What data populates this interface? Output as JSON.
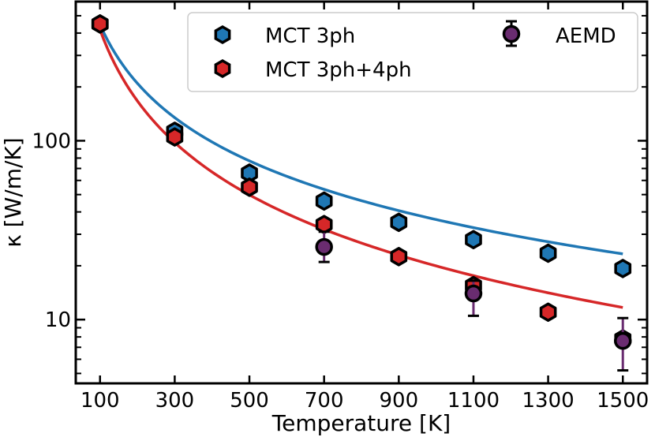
{
  "chart_data": {
    "type": "scatter",
    "title": "",
    "xlabel": "Temperature [K]",
    "ylabel": "κ [W/m/K]",
    "xscale": "linear",
    "yscale": "log",
    "xlim": [
      35,
      1565
    ],
    "ylim": [
      4.4,
      600
    ],
    "xticks": [
      100,
      300,
      500,
      700,
      900,
      1100,
      1300,
      1500
    ],
    "xtick_labels": [
      "100",
      "300",
      "500",
      "700",
      "900",
      "1100",
      "1300",
      "1500"
    ],
    "yticks": [
      10,
      100
    ],
    "ytick_labels": [
      "10",
      "100"
    ],
    "legend_position": "top-right",
    "series": [
      {
        "name": "MCT 3ph",
        "kind": "points",
        "marker": "hexagon",
        "color": "#1f77b4",
        "x": [
          100,
          300,
          500,
          700,
          900,
          1100,
          1300,
          1500
        ],
        "y": [
          450,
          113,
          66,
          46,
          35,
          28,
          23.5,
          19.3
        ]
      },
      {
        "name": "MCT 3ph+4ph",
        "kind": "points",
        "marker": "hexagon",
        "color": "#d62728",
        "x": [
          100,
          300,
          500,
          700,
          900,
          1100,
          1300,
          1500
        ],
        "y": [
          450,
          105,
          55,
          34,
          22.5,
          15.5,
          11,
          7.8
        ]
      },
      {
        "name": "AEMD",
        "kind": "errorbar",
        "marker": "circle",
        "color": "#6a2c70",
        "x": [
          700,
          1100,
          1500
        ],
        "y": [
          25.5,
          14,
          7.6
        ],
        "yerr_low": [
          21,
          10.5,
          5.2
        ],
        "yerr_high": [
          31,
          16.5,
          10.2
        ]
      },
      {
        "name": "MCT 3ph fit",
        "kind": "line",
        "color": "#1f77b4",
        "model": "a*T^-b",
        "a": 67500,
        "b": 1.09
      },
      {
        "name": "MCT 3ph+4ph fit",
        "kind": "line",
        "color": "#d62728",
        "model": "a*T^-b",
        "a": 182000,
        "b": 1.32
      }
    ],
    "legend": [
      "MCT 3ph",
      "MCT 3ph+4ph",
      "AEMD"
    ]
  }
}
